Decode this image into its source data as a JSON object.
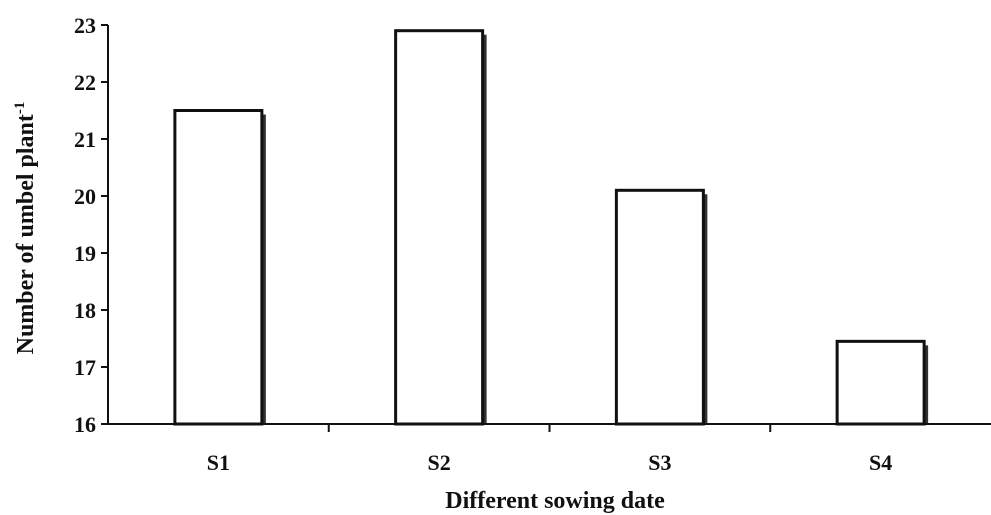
{
  "chart_data": {
    "type": "bar",
    "categories": [
      "S1",
      "S2",
      "S3",
      "S4"
    ],
    "values": [
      21.5,
      22.9,
      20.1,
      17.45
    ],
    "xlabel": "Different sowing date",
    "ylabel": "Number of umbel plant",
    "ylabel_superscript": "-1",
    "ylim": [
      16,
      23
    ],
    "yticks": [
      "16",
      "17",
      "18",
      "19",
      "20",
      "21",
      "22",
      "23"
    ],
    "grid": false,
    "legend": "none",
    "colors": {
      "bar_fill": "#ffffff",
      "bar_stroke": "#111111",
      "axis": "#111111"
    }
  }
}
